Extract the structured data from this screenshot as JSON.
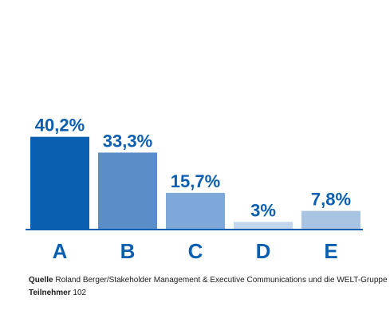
{
  "chart_data": {
    "type": "bar",
    "categories": [
      "A",
      "B",
      "C",
      "D",
      "E"
    ],
    "values": [
      40.2,
      33.3,
      15.7,
      3,
      7.8
    ],
    "value_labels": [
      "40,2%",
      "33,3%",
      "15,7%",
      "3%",
      "7,8%"
    ],
    "ylim": [
      0,
      50
    ],
    "grid": false,
    "legend": "none",
    "colors": [
      "#0a5fb0",
      "#5b8ec8",
      "#7ea8d8",
      "#c3d6ec",
      "#a9c4e3"
    ],
    "label_color": "#0a5fb0"
  },
  "footer": {
    "source_label": "Quelle",
    "source_text": "Roland Berger/Stakeholder Management & Executive Communications  und die WELT-Gruppe",
    "participants_label": "Teilnehmer",
    "participants_value": "102"
  }
}
